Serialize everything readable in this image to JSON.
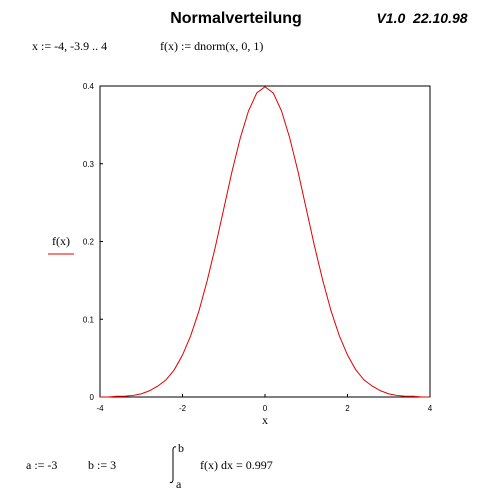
{
  "header": {
    "title": "Normalverteilung",
    "version": "V1.0  22.10.98"
  },
  "definitions": {
    "range": "x := -4, -3.9 .. 4",
    "function": "f(x) := dnorm(x, 0, 1)"
  },
  "integral": {
    "a": "a := -3",
    "b": "b := 3",
    "upper": "b",
    "lower": "a",
    "expression": "f(x) dx = 0.997"
  },
  "chart_data": {
    "type": "line",
    "xlabel": "x",
    "x": [
      -4,
      -3.8,
      -3.6,
      -3.4,
      -3.2,
      -3,
      -2.8,
      -2.6,
      -2.4,
      -2.2,
      -2,
      -1.8,
      -1.6,
      -1.4,
      -1.2,
      -1,
      -0.8,
      -0.6,
      -0.4,
      -0.2,
      0,
      0.2,
      0.4,
      0.6,
      0.8,
      1,
      1.2,
      1.4,
      1.6,
      1.8,
      2,
      2.2,
      2.4,
      2.6,
      2.8,
      3,
      3.2,
      3.4,
      3.6,
      3.8,
      4
    ],
    "series": [
      {
        "name": "f(x)",
        "color": "#e00000",
        "values": [
          0.0,
          0.0,
          0.001,
          0.001,
          0.002,
          0.004,
          0.008,
          0.014,
          0.022,
          0.035,
          0.054,
          0.079,
          0.111,
          0.15,
          0.194,
          0.242,
          0.29,
          0.333,
          0.368,
          0.391,
          0.399,
          0.391,
          0.368,
          0.333,
          0.29,
          0.242,
          0.194,
          0.15,
          0.111,
          0.079,
          0.054,
          0.035,
          0.022,
          0.014,
          0.008,
          0.004,
          0.002,
          0.001,
          0.001,
          0.0,
          0.0
        ]
      }
    ],
    "xlim": [
      -4,
      4
    ],
    "xticks": [
      -4,
      -2,
      0,
      2,
      4
    ],
    "ylim": [
      0,
      0.4
    ],
    "yticks": [
      0,
      0.1,
      0.2,
      0.3,
      0.4
    ]
  }
}
